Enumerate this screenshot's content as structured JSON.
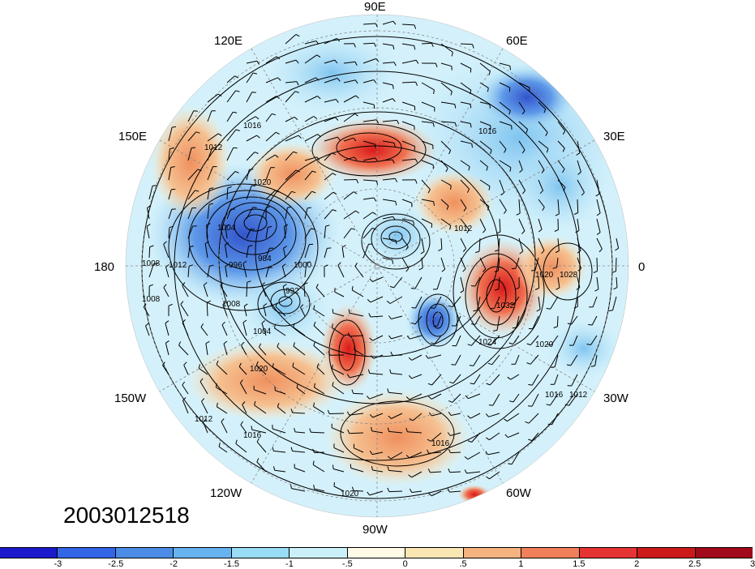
{
  "timestamp": "2003012518",
  "lon_labels": {
    "lon_90e": "90E",
    "lon_120e": "120E",
    "lon_60e": "60E",
    "lon_150e": "150E",
    "lon_30e": "30E",
    "lon_180": "180",
    "lon_0": "0",
    "lon_150w": "150W",
    "lon_30w": "30W",
    "lon_120w": "120W",
    "lon_60w": "60W",
    "lon_90w": "90W"
  },
  "contour_labels": [
    "1016",
    "1016",
    "1012",
    "1020",
    "1004",
    "996",
    "984",
    "1000",
    "992",
    "1008",
    "1008",
    "1008",
    "1012",
    "1004",
    "1020",
    "1020",
    "1028",
    "1032",
    "1024",
    "1020",
    "1016",
    "1012",
    "1016",
    "1012",
    "1016",
    "1020",
    "1012"
  ],
  "colorbar": {
    "colors": [
      "#1a1acc",
      "#3366e6",
      "#4d8ce6",
      "#66b3f0",
      "#99dcf5",
      "#ccf0fa",
      "#fffae6",
      "#fae6b3",
      "#f5b380",
      "#f08059",
      "#e63333",
      "#cc1a1a",
      "#a00a1a"
    ],
    "ticks": [
      "-3",
      "-2.5",
      "-2",
      "-1.5",
      "-1",
      "-.5",
      "0",
      ".5",
      "1",
      "1.5",
      "2",
      "2.5",
      "3"
    ]
  }
}
